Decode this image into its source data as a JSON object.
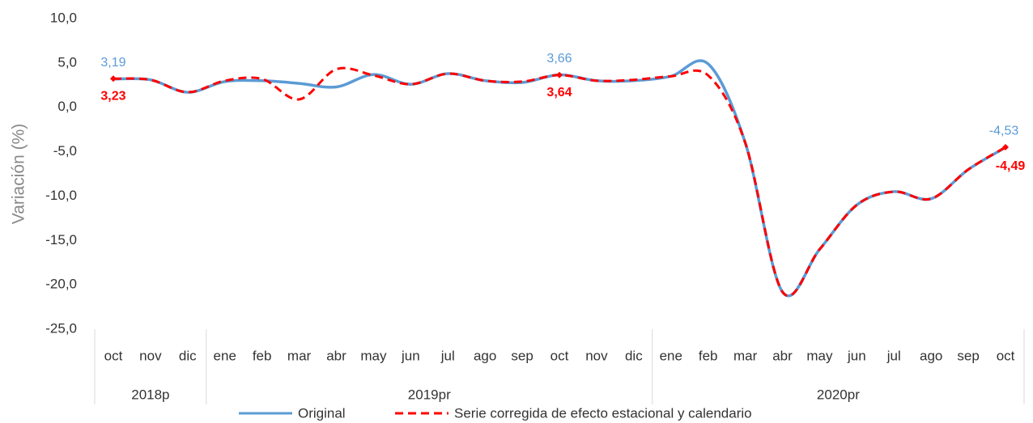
{
  "chart_data": {
    "type": "line",
    "ylabel": "Variación (%)",
    "groups": [
      {
        "label": "2018p",
        "categories": [
          "oct",
          "nov",
          "dic"
        ]
      },
      {
        "label": "2019pr",
        "categories": [
          "ene",
          "feb",
          "mar",
          "abr",
          "may",
          "jun",
          "jul",
          "ago",
          "sep",
          "oct",
          "nov",
          "dic"
        ]
      },
      {
        "label": "2020pr",
        "categories": [
          "ene",
          "feb",
          "mar",
          "abr",
          "may",
          "jun",
          "jul",
          "ago",
          "sep",
          "oct"
        ]
      }
    ],
    "series": [
      {
        "name": "Original",
        "color": "#5b9bd5",
        "dashed": false,
        "values": [
          3.19,
          3.1,
          1.7,
          2.9,
          3.0,
          2.7,
          2.3,
          3.7,
          2.6,
          3.8,
          3.0,
          2.8,
          3.66,
          3.0,
          3.0,
          3.5,
          4.9,
          -4.0,
          -20.8,
          -16.0,
          -11.0,
          -9.5,
          -10.3,
          -7.0,
          -4.53
        ],
        "value_labels": [
          "3,19",
          null,
          null,
          null,
          null,
          null,
          null,
          null,
          null,
          null,
          null,
          null,
          "3,66",
          null,
          null,
          null,
          null,
          null,
          null,
          null,
          null,
          null,
          null,
          null,
          "-4,53"
        ]
      },
      {
        "name": "Serie corregida de efecto estacional y calendario",
        "color": "#ff0000",
        "dashed": true,
        "values": [
          3.23,
          3.1,
          1.7,
          3.0,
          3.2,
          0.9,
          4.3,
          3.6,
          2.6,
          3.8,
          3.0,
          2.9,
          3.64,
          3.0,
          3.1,
          3.5,
          3.6,
          -4.0,
          -20.8,
          -16.0,
          -11.0,
          -9.5,
          -10.3,
          -7.0,
          -4.49
        ],
        "value_labels": [
          "3,23",
          null,
          null,
          null,
          null,
          null,
          null,
          null,
          null,
          null,
          null,
          null,
          "3,64",
          null,
          null,
          null,
          null,
          null,
          null,
          null,
          null,
          null,
          null,
          null,
          "-4,49"
        ]
      }
    ],
    "ylim": [
      -25,
      10
    ],
    "yticks": [
      {
        "value": -25,
        "label": "-25,0"
      },
      {
        "value": -20,
        "label": "-20,0"
      },
      {
        "value": -15,
        "label": "-15,0"
      },
      {
        "value": -10,
        "label": "-10,0"
      },
      {
        "value": -5,
        "label": "-5,0"
      },
      {
        "value": 0,
        "label": "0,0"
      },
      {
        "value": 5,
        "label": "5,0"
      },
      {
        "value": 10,
        "label": "10,0"
      }
    ],
    "grid": false
  }
}
